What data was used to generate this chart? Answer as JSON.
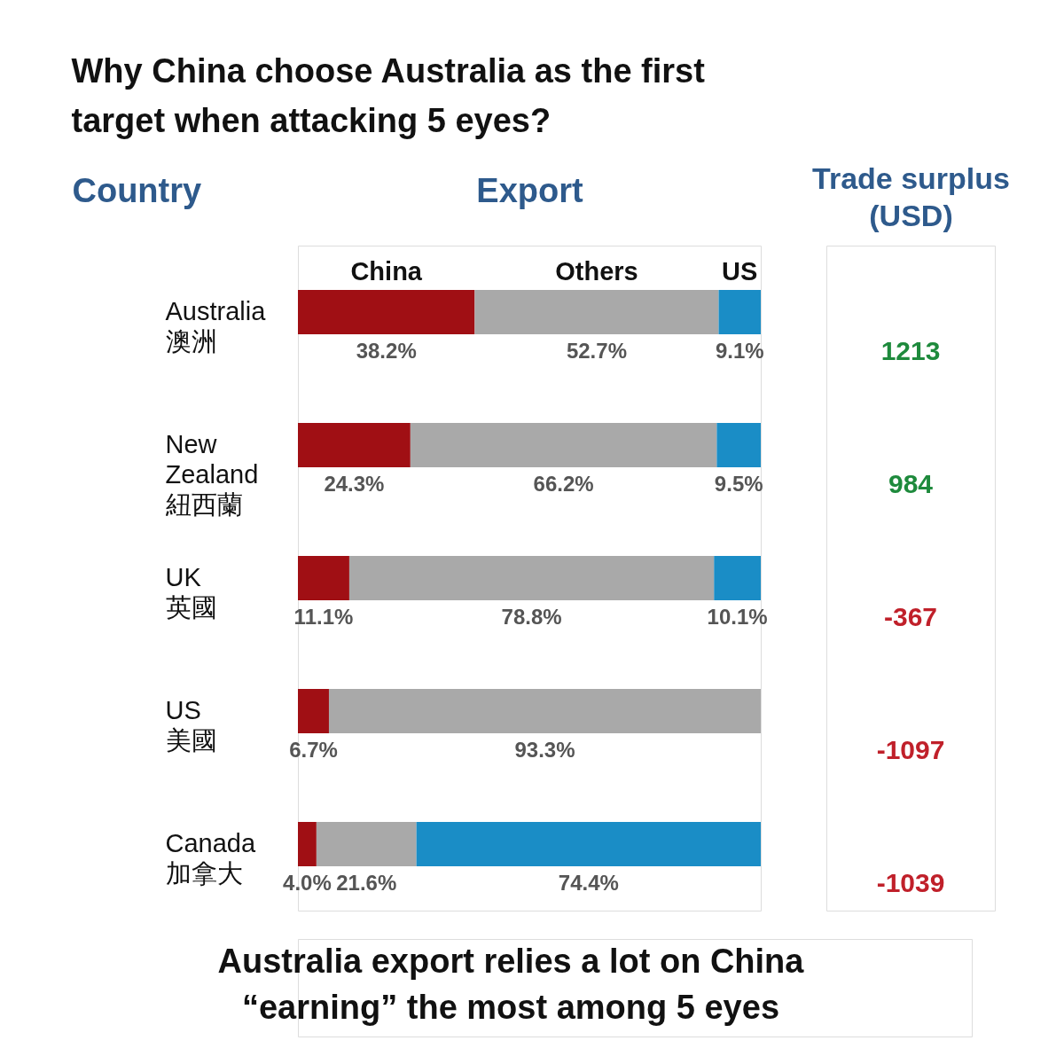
{
  "chart_data": [
    {
      "type": "bar",
      "orientation": "horizontal",
      "stacked": true,
      "title": "Why China choose Australia as the first target when attacking 5 eyes?",
      "xlabel": "Export",
      "ylabel": "Country",
      "categories": [
        "Australia 澳洲",
        "New Zealand 紐西蘭",
        "UK 英國",
        "US 美國",
        "Canada 加拿大"
      ],
      "series": [
        {
          "name": "China",
          "color": "#a00f14",
          "values": [
            38.2,
            24.3,
            11.1,
            6.7,
            4.0
          ],
          "value_labels": [
            "38.2%",
            "24.3%",
            "11.1%",
            "6.7%",
            "4.0%"
          ]
        },
        {
          "name": "Others",
          "color": "#a9a9a9",
          "values": [
            52.7,
            66.2,
            78.8,
            93.3,
            21.6
          ],
          "value_labels": [
            "52.7%",
            "66.2%",
            "78.8%",
            "93.3%",
            "21.6%"
          ]
        },
        {
          "name": "US",
          "color": "#1a8dc6",
          "values": [
            9.1,
            9.5,
            10.1,
            null,
            74.4
          ],
          "value_labels": [
            "9.1%",
            "9.5%",
            "10.1%",
            null,
            "74.4%"
          ]
        }
      ],
      "xlim": [
        0,
        100
      ],
      "tick_labels": "y",
      "annotations": [
        "Australia export relies a lot on China “earning” the most among 5 eyes"
      ]
    },
    {
      "type": "other",
      "title": "Trade surplus (USD)",
      "categories": [
        null,
        null,
        null,
        null,
        null
      ],
      "values": [
        1213,
        984,
        -367,
        -1097,
        -1039
      ],
      "colors": [
        "#1e8a3c",
        "#1e8a3c",
        "#c0202a",
        "#c0202a",
        "#c0202a"
      ],
      "data_labels": true
    }
  ]
}
